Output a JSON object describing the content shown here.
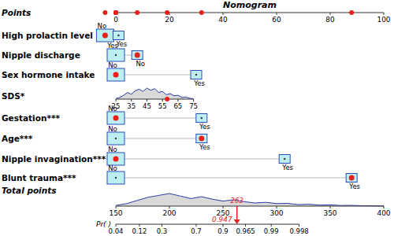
{
  "chart_data": {
    "type": "nomogram",
    "title": "Nomogram",
    "points_axis": {
      "label": "Points",
      "xlim": [
        0,
        100
      ],
      "xticks": [
        0,
        20,
        40,
        60,
        80,
        100
      ]
    },
    "rows": [
      {
        "label": "High prolactin level",
        "type": "categorical",
        "levels": [
          {
            "label": "No",
            "points": -4
          },
          {
            "label": "Yes",
            "points": 1
          }
        ],
        "selected": "No"
      },
      {
        "label": "Nipple discharge",
        "type": "categorical",
        "levels": [
          {
            "label": "Yes",
            "points": 0
          },
          {
            "label": "No",
            "points": 8
          }
        ],
        "selected": "No"
      },
      {
        "label": "Sex hormone intake",
        "type": "categorical",
        "levels": [
          {
            "label": "No",
            "points": 0
          },
          {
            "label": "Yes",
            "points": 30
          }
        ],
        "selected": "No"
      },
      {
        "label": "SDS*",
        "type": "continuous",
        "xlim": [
          25,
          75
        ],
        "xticks": [
          25,
          35,
          45,
          55,
          65,
          75
        ],
        "points_range": [
          0,
          29
        ],
        "selected": 58,
        "density": {
          "x": [
            25,
            27.5,
            30,
            32.5,
            35,
            37.5,
            40,
            42.5,
            45,
            47.5,
            50,
            52.5,
            55,
            57.5,
            60,
            62.5,
            65,
            67.5,
            70,
            72.5,
            75
          ],
          "y": [
            0.05,
            0.15,
            0.35,
            0.6,
            0.45,
            0.75,
            0.9,
            0.7,
            1.0,
            0.8,
            0.95,
            0.6,
            0.7,
            0.4,
            0.5,
            0.3,
            0.35,
            0.15,
            0.2,
            0.08,
            0.03
          ]
        }
      },
      {
        "label": "Gestation***",
        "type": "categorical",
        "levels": [
          {
            "label": "No",
            "points": 0
          },
          {
            "label": "Yes",
            "points": 32
          }
        ],
        "selected": "No"
      },
      {
        "label": "Age***",
        "type": "categorical",
        "levels": [
          {
            "label": "No",
            "points": 0
          },
          {
            "label": "Yes",
            "points": 32
          }
        ],
        "selected": "Yes"
      },
      {
        "label": "Nipple invagination***",
        "type": "categorical",
        "levels": [
          {
            "label": "No",
            "points": 0
          },
          {
            "label": "Yes",
            "points": 63
          }
        ],
        "selected": "No"
      },
      {
        "label": "Blunt trauma***",
        "type": "categorical",
        "levels": [
          {
            "label": "No",
            "points": 0
          },
          {
            "label": "Yes",
            "points": 88
          }
        ],
        "selected": "Yes"
      }
    ],
    "total_axis": {
      "label": "Total points",
      "xlim": [
        150,
        400
      ],
      "xticks": [
        150,
        200,
        250,
        300,
        350,
        400
      ],
      "marker": 263,
      "density": {
        "x": [
          150,
          160,
          170,
          180,
          190,
          200,
          210,
          220,
          230,
          240,
          250,
          260,
          270,
          280,
          290,
          300,
          310,
          320,
          330,
          340,
          350,
          360,
          370,
          380,
          390,
          400
        ],
        "y": [
          0.05,
          0.2,
          0.45,
          0.7,
          0.85,
          1.0,
          0.8,
          0.6,
          0.75,
          0.55,
          0.4,
          0.5,
          0.35,
          0.25,
          0.3,
          0.2,
          0.22,
          0.12,
          0.15,
          0.08,
          0.1,
          0.05,
          0.06,
          0.03,
          0.02,
          0.01
        ]
      }
    },
    "probability_axis": {
      "label": "Pr( )",
      "marker": 0.947,
      "ticks": [
        {
          "value": 0.04,
          "total": 150
        },
        {
          "value": 0.12,
          "total": 172
        },
        {
          "value": 0.3,
          "total": 193
        },
        {
          "value": 0.7,
          "total": 225
        },
        {
          "value": 0.9,
          "total": 250
        },
        {
          "value": 0.965,
          "total": 271
        },
        {
          "value": 0.99,
          "total": 295
        },
        {
          "value": 0.998,
          "total": 321
        }
      ]
    },
    "colors": {
      "box": "#bdeef2",
      "edge": "#2a4db8",
      "marker": "#e8201c",
      "curve": "#2b3aa8"
    }
  }
}
